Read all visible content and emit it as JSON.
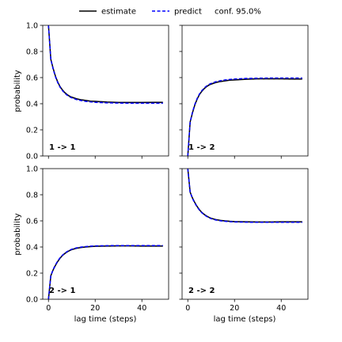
{
  "chart_data": {
    "type": "line",
    "layout": "2x2 grid of subplots with shared axes",
    "legend": {
      "placement": "top-center",
      "entries": [
        {
          "label": "estimate",
          "style": "solid",
          "color": "#000000"
        },
        {
          "label": "predict",
          "style": "dashed",
          "color": "#0000ff"
        },
        {
          "label": "conf. 95.0%",
          "style": "band",
          "color": "#0000ff"
        }
      ]
    },
    "xlabel": "lag time (steps)",
    "ylabel": "probability",
    "xlim": [
      -2.45,
      51.45
    ],
    "ylim": [
      0,
      1
    ],
    "xticks": [
      0,
      20,
      40
    ],
    "yticks": [
      0.0,
      0.2,
      0.4,
      0.6,
      0.8,
      1.0
    ],
    "xtick_labels": [
      "0",
      "20",
      "40"
    ],
    "ytick_labels": [
      "0.0",
      "0.2",
      "0.4",
      "0.6",
      "0.8",
      "1.0"
    ],
    "grid": false,
    "panels": [
      {
        "label": "1 -> 1",
        "estimate": {
          "x": [
            0,
            1,
            2,
            3,
            4,
            5,
            6,
            7,
            8,
            9,
            10,
            12,
            14,
            16,
            18,
            20,
            25,
            30,
            35,
            40,
            45,
            49
          ],
          "y": [
            1.0,
            0.74,
            0.67,
            0.61,
            0.565,
            0.53,
            0.505,
            0.485,
            0.47,
            0.458,
            0.45,
            0.438,
            0.43,
            0.425,
            0.42,
            0.418,
            0.413,
            0.41,
            0.41,
            0.41,
            0.411,
            0.411
          ]
        },
        "predict": {
          "x": [
            0,
            1,
            2,
            3,
            4,
            5,
            6,
            7,
            8,
            9,
            10,
            12,
            14,
            16,
            18,
            20,
            25,
            30,
            35,
            40,
            45,
            49
          ],
          "y": [
            1.0,
            0.74,
            0.665,
            0.605,
            0.56,
            0.525,
            0.5,
            0.48,
            0.465,
            0.453,
            0.445,
            0.432,
            0.424,
            0.418,
            0.414,
            0.411,
            0.407,
            0.405,
            0.404,
            0.404,
            0.404,
            0.404
          ]
        }
      },
      {
        "label": "1 -> 2",
        "estimate": {
          "x": [
            0,
            1,
            2,
            3,
            4,
            5,
            6,
            7,
            8,
            9,
            10,
            12,
            14,
            16,
            18,
            20,
            25,
            30,
            35,
            40,
            45,
            49
          ],
          "y": [
            0.0,
            0.26,
            0.33,
            0.39,
            0.435,
            0.47,
            0.495,
            0.515,
            0.53,
            0.542,
            0.55,
            0.562,
            0.57,
            0.575,
            0.58,
            0.582,
            0.587,
            0.59,
            0.59,
            0.59,
            0.589,
            0.589
          ]
        },
        "predict": {
          "x": [
            0,
            1,
            2,
            3,
            4,
            5,
            6,
            7,
            8,
            9,
            10,
            12,
            14,
            16,
            18,
            20,
            25,
            30,
            35,
            40,
            45,
            49
          ],
          "y": [
            0.0,
            0.26,
            0.335,
            0.395,
            0.44,
            0.475,
            0.5,
            0.52,
            0.535,
            0.547,
            0.555,
            0.568,
            0.576,
            0.582,
            0.586,
            0.589,
            0.593,
            0.595,
            0.596,
            0.596,
            0.596,
            0.596
          ]
        }
      },
      {
        "label": "2 -> 1",
        "estimate": {
          "x": [
            0,
            1,
            2,
            3,
            4,
            5,
            6,
            7,
            8,
            9,
            10,
            12,
            14,
            16,
            18,
            20,
            25,
            30,
            35,
            40,
            45,
            49
          ],
          "y": [
            0.0,
            0.18,
            0.225,
            0.26,
            0.29,
            0.315,
            0.335,
            0.35,
            0.362,
            0.372,
            0.38,
            0.39,
            0.396,
            0.4,
            0.403,
            0.405,
            0.407,
            0.408,
            0.408,
            0.407,
            0.407,
            0.407
          ]
        },
        "predict": {
          "x": [
            0,
            1,
            2,
            3,
            4,
            5,
            6,
            7,
            8,
            9,
            10,
            12,
            14,
            16,
            18,
            20,
            25,
            30,
            35,
            40,
            45,
            49
          ],
          "y": [
            0.0,
            0.18,
            0.228,
            0.264,
            0.294,
            0.318,
            0.338,
            0.353,
            0.365,
            0.375,
            0.383,
            0.393,
            0.399,
            0.403,
            0.406,
            0.408,
            0.41,
            0.411,
            0.411,
            0.411,
            0.411,
            0.411
          ]
        }
      },
      {
        "label": "2 -> 2",
        "estimate": {
          "x": [
            0,
            1,
            2,
            3,
            4,
            5,
            6,
            7,
            8,
            9,
            10,
            12,
            14,
            16,
            18,
            20,
            25,
            30,
            35,
            40,
            45,
            49
          ],
          "y": [
            1.0,
            0.82,
            0.775,
            0.74,
            0.71,
            0.685,
            0.665,
            0.65,
            0.638,
            0.628,
            0.62,
            0.61,
            0.604,
            0.6,
            0.597,
            0.595,
            0.593,
            0.592,
            0.592,
            0.593,
            0.593,
            0.593
          ]
        },
        "predict": {
          "x": [
            0,
            1,
            2,
            3,
            4,
            5,
            6,
            7,
            8,
            9,
            10,
            12,
            14,
            16,
            18,
            20,
            25,
            30,
            35,
            40,
            45,
            49
          ],
          "y": [
            1.0,
            0.82,
            0.772,
            0.736,
            0.706,
            0.682,
            0.662,
            0.647,
            0.635,
            0.625,
            0.617,
            0.607,
            0.601,
            0.597,
            0.594,
            0.592,
            0.59,
            0.589,
            0.589,
            0.589,
            0.589,
            0.589
          ]
        }
      }
    ]
  }
}
